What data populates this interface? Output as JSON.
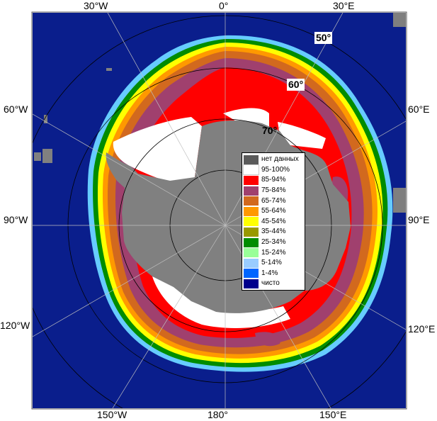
{
  "map": {
    "longitude_labels": {
      "top": [
        "30°W",
        "0°",
        "30°E"
      ],
      "left": [
        "60°W",
        "90°W",
        "120°W"
      ],
      "right": [
        "60°E",
        "90°E",
        "120°E"
      ],
      "bottom": [
        "150°W",
        "180°",
        "150°E"
      ]
    },
    "latitude_labels": [
      "50°",
      "60°",
      "70°"
    ],
    "colors": {
      "ocean": "#0a1e8c",
      "land_gray": "#808080",
      "frame_gray": "#7f7f7f",
      "graticule": "#000000"
    }
  },
  "legend": {
    "items": [
      {
        "label": "нет данных",
        "color": "#5a5a5a"
      },
      {
        "label": "95-100%",
        "color": "#ffffff"
      },
      {
        "label": "85-94%",
        "color": "#ff0000"
      },
      {
        "label": "75-84%",
        "color": "#a0406e"
      },
      {
        "label": "65-74%",
        "color": "#d2691e"
      },
      {
        "label": "55-64%",
        "color": "#ff9900"
      },
      {
        "label": "45-54%",
        "color": "#ffff00"
      },
      {
        "label": "35-44%",
        "color": "#999900"
      },
      {
        "label": "25-34%",
        "color": "#008c00"
      },
      {
        "label": "15-24%",
        "color": "#99ff99"
      },
      {
        "label": "5-14%",
        "color": "#99ccff"
      },
      {
        "label": "1-4%",
        "color": "#0066ff"
      },
      {
        "label": "чисто",
        "color": "#00008c"
      }
    ]
  }
}
